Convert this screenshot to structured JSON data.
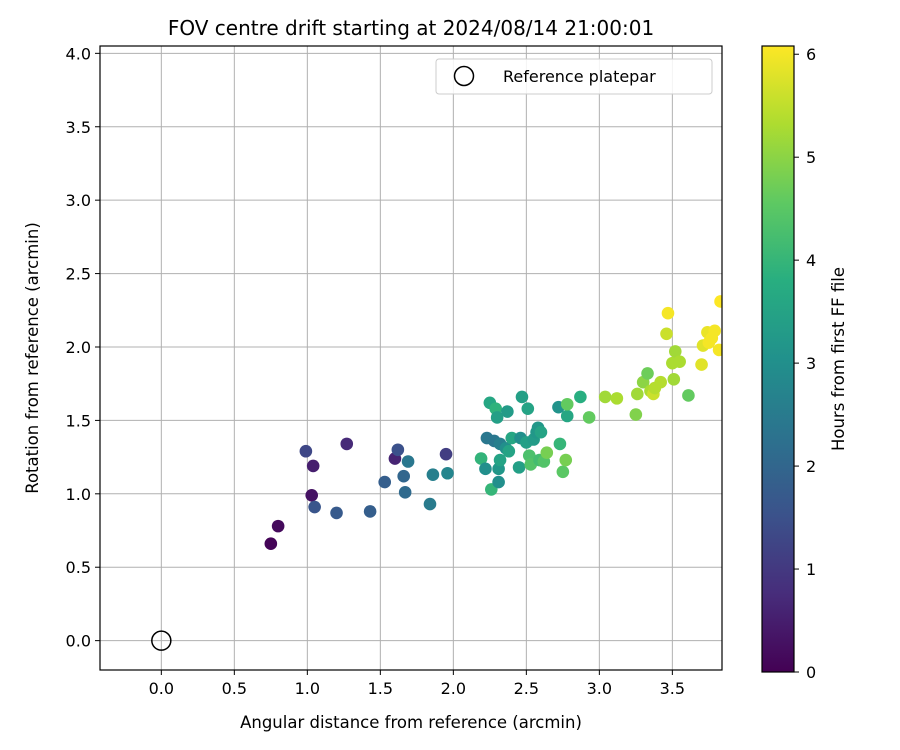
{
  "chart_data": {
    "type": "scatter",
    "title": "FOV centre drift starting at 2024/08/14 21:00:01",
    "xlabel": "Angular distance from reference (arcmin)",
    "ylabel": "Rotation from reference (arcmin)",
    "xlim": [
      -0.42,
      3.84
    ],
    "ylim": [
      -0.2,
      4.05
    ],
    "xticks": [
      "0.0",
      "0.5",
      "1.0",
      "1.5",
      "2.0",
      "2.5",
      "3.0",
      "3.5"
    ],
    "yticks": [
      "0.0",
      "0.5",
      "1.0",
      "1.5",
      "2.0",
      "2.5",
      "3.0",
      "3.5",
      "4.0"
    ],
    "grid": true,
    "legend": {
      "position": "top-right",
      "entries": [
        "Reference platepar"
      ]
    },
    "colorbar": {
      "label": "Hours from first FF file",
      "range": [
        0,
        6.08
      ],
      "ticks": [
        "0",
        "1",
        "2",
        "3",
        "4",
        "5",
        "6"
      ],
      "colormap": "viridis"
    },
    "reference_point": {
      "x": 0.0,
      "y": 0.0
    },
    "points": [
      [
        0.75,
        0.66,
        0.05
      ],
      [
        0.8,
        0.78,
        0.15
      ],
      [
        1.03,
        0.99,
        0.3
      ],
      [
        1.04,
        1.19,
        0.5
      ],
      [
        1.27,
        1.34,
        0.7
      ],
      [
        1.95,
        1.27,
        1.1
      ],
      [
        1.6,
        1.24,
        0.6
      ],
      [
        0.99,
        1.29,
        1.3
      ],
      [
        1.05,
        0.91,
        1.6
      ],
      [
        1.2,
        0.87,
        1.7
      ],
      [
        1.43,
        0.88,
        1.8
      ],
      [
        1.53,
        1.08,
        1.8
      ],
      [
        1.62,
        1.3,
        1.5
      ],
      [
        1.66,
        1.12,
        2.0
      ],
      [
        1.67,
        1.01,
        2.1
      ],
      [
        1.69,
        1.22,
        2.4
      ],
      [
        1.84,
        0.93,
        2.5
      ],
      [
        1.86,
        1.13,
        2.6
      ],
      [
        1.96,
        1.14,
        2.75
      ],
      [
        2.19,
        1.24,
        3.95
      ],
      [
        2.22,
        1.17,
        3.0
      ],
      [
        2.23,
        1.38,
        2.4
      ],
      [
        2.25,
        1.62,
        3.6
      ],
      [
        2.26,
        1.03,
        4.0
      ],
      [
        2.28,
        1.36,
        2.4
      ],
      [
        2.29,
        1.58,
        3.9
      ],
      [
        2.3,
        1.52,
        3.4
      ],
      [
        2.31,
        1.08,
        3.0
      ],
      [
        2.32,
        1.34,
        2.6
      ],
      [
        2.31,
        1.17,
        3.2
      ],
      [
        2.32,
        1.23,
        3.5
      ],
      [
        2.36,
        1.31,
        3.0
      ],
      [
        2.37,
        1.56,
        3.3
      ],
      [
        2.38,
        1.29,
        3.5
      ],
      [
        2.4,
        1.38,
        3.6
      ],
      [
        2.45,
        1.18,
        3.4
      ],
      [
        2.46,
        1.38,
        3.0
      ],
      [
        2.47,
        1.66,
        3.4
      ],
      [
        2.5,
        1.35,
        3.4
      ],
      [
        2.51,
        1.58,
        3.5
      ],
      [
        2.52,
        1.26,
        4.3
      ],
      [
        2.53,
        1.2,
        4.4
      ],
      [
        2.55,
        1.37,
        3.3
      ],
      [
        2.57,
        1.42,
        3.2
      ],
      [
        2.58,
        1.45,
        3.2
      ],
      [
        2.59,
        1.23,
        4.2
      ],
      [
        2.6,
        1.42,
        3.5
      ],
      [
        2.62,
        1.22,
        4.4
      ],
      [
        2.64,
        1.28,
        4.8
      ],
      [
        2.72,
        1.59,
        3.1
      ],
      [
        2.73,
        1.34,
        4.0
      ],
      [
        2.75,
        1.15,
        4.5
      ],
      [
        2.77,
        1.23,
        4.8
      ],
      [
        2.78,
        1.53,
        3.6
      ],
      [
        2.78,
        1.61,
        4.6
      ],
      [
        2.87,
        1.66,
        3.8
      ],
      [
        2.93,
        1.52,
        4.6
      ],
      [
        3.04,
        1.66,
        5.2
      ],
      [
        3.12,
        1.65,
        5.3
      ],
      [
        3.25,
        1.54,
        4.9
      ],
      [
        3.26,
        1.68,
        5.2
      ],
      [
        3.3,
        1.76,
        5.0
      ],
      [
        3.33,
        1.82,
        4.7
      ],
      [
        3.35,
        1.7,
        5.3
      ],
      [
        3.37,
        1.68,
        5.6
      ],
      [
        3.38,
        1.72,
        5.4
      ],
      [
        3.42,
        1.76,
        5.4
      ],
      [
        3.46,
        2.09,
        5.6
      ],
      [
        3.47,
        2.23,
        6.0
      ],
      [
        3.5,
        1.89,
        5.3
      ],
      [
        3.51,
        1.78,
        5.2
      ],
      [
        3.52,
        1.97,
        5.2
      ],
      [
        3.55,
        1.9,
        5.3
      ],
      [
        3.61,
        1.67,
        4.6
      ],
      [
        3.7,
        1.88,
        5.8
      ],
      [
        3.71,
        2.01,
        5.8
      ],
      [
        3.74,
        2.1,
        5.9
      ],
      [
        3.75,
        2.03,
        6.0
      ],
      [
        3.77,
        2.06,
        6.0
      ],
      [
        3.79,
        2.11,
        6.0
      ],
      [
        3.82,
        1.98,
        6.0
      ],
      [
        3.83,
        2.31,
        6.08
      ]
    ]
  }
}
